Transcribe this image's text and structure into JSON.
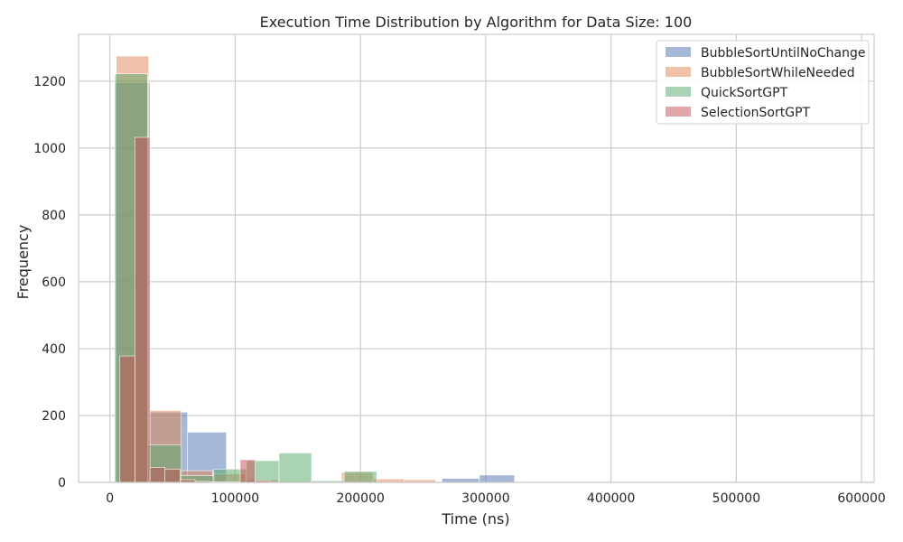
{
  "chart_data": {
    "type": "histogram",
    "title": "Execution Time Distribution by Algorithm for Data Size: 100",
    "xlabel": "Time (ns)",
    "ylabel": "Frequency",
    "xlim": [
      -25000,
      610000
    ],
    "ylim": [
      0,
      1340
    ],
    "xticks": [
      0,
      100000,
      200000,
      300000,
      400000,
      500000,
      600000
    ],
    "xtick_labels": [
      "0",
      "100000",
      "200000",
      "300000",
      "400000",
      "500000",
      "600000"
    ],
    "yticks": [
      0,
      200,
      400,
      600,
      800,
      1000,
      1200
    ],
    "ytick_labels": [
      "0",
      "200",
      "400",
      "600",
      "800",
      "1000",
      "1200"
    ],
    "grid": true,
    "legend_position": "top-right",
    "series": [
      {
        "name": "BubbleSortUntilNoChange",
        "color": "#4c72b0",
        "alpha": 0.5,
        "bins": [
          {
            "x0": 4000,
            "x1": 32000,
            "count": 1195
          },
          {
            "x0": 32000,
            "x1": 62000,
            "count": 210
          },
          {
            "x0": 62000,
            "x1": 93000,
            "count": 150
          },
          {
            "x0": 93000,
            "x1": 121000,
            "count": 5
          },
          {
            "x0": 121000,
            "x1": 150000,
            "count": 3
          },
          {
            "x0": 150000,
            "x1": 180000,
            "count": 2
          },
          {
            "x0": 180000,
            "x1": 210000,
            "count": 2
          },
          {
            "x0": 210000,
            "x1": 240000,
            "count": 1
          },
          {
            "x0": 240000,
            "x1": 265000,
            "count": 1
          },
          {
            "x0": 265000,
            "x1": 295000,
            "count": 12
          },
          {
            "x0": 295000,
            "x1": 323000,
            "count": 22
          },
          {
            "x0": 323000,
            "x1": 585000,
            "count": 1
          }
        ]
      },
      {
        "name": "BubbleSortWhileNeeded",
        "color": "#dd8452",
        "alpha": 0.5,
        "bins": [
          {
            "x0": 5000,
            "x1": 31000,
            "count": 1275
          },
          {
            "x0": 31000,
            "x1": 57000,
            "count": 215
          },
          {
            "x0": 57000,
            "x1": 82000,
            "count": 35
          },
          {
            "x0": 82000,
            "x1": 108000,
            "count": 25
          },
          {
            "x0": 108000,
            "x1": 134000,
            "count": 8
          },
          {
            "x0": 134000,
            "x1": 160000,
            "count": 3
          },
          {
            "x0": 160000,
            "x1": 185000,
            "count": 2
          },
          {
            "x0": 185000,
            "x1": 210000,
            "count": 30
          },
          {
            "x0": 210000,
            "x1": 235000,
            "count": 10
          },
          {
            "x0": 235000,
            "x1": 260000,
            "count": 8
          }
        ]
      },
      {
        "name": "QuickSortGPT",
        "color": "#55a868",
        "alpha": 0.5,
        "bins": [
          {
            "x0": 4000,
            "x1": 30000,
            "count": 1222
          },
          {
            "x0": 30000,
            "x1": 57000,
            "count": 112
          },
          {
            "x0": 57000,
            "x1": 83000,
            "count": 20
          },
          {
            "x0": 83000,
            "x1": 109000,
            "count": 40
          },
          {
            "x0": 109000,
            "x1": 135000,
            "count": 65
          },
          {
            "x0": 135000,
            "x1": 161000,
            "count": 88
          },
          {
            "x0": 161000,
            "x1": 187000,
            "count": 5
          },
          {
            "x0": 187000,
            "x1": 213000,
            "count": 33
          }
        ]
      },
      {
        "name": "SelectionSortGPT",
        "color": "#c44e52",
        "alpha": 0.5,
        "bins": [
          {
            "x0": 8000,
            "x1": 20000,
            "count": 378
          },
          {
            "x0": 20000,
            "x1": 32000,
            "count": 1032
          },
          {
            "x0": 32000,
            "x1": 44000,
            "count": 45
          },
          {
            "x0": 44000,
            "x1": 56000,
            "count": 40
          },
          {
            "x0": 56000,
            "x1": 68000,
            "count": 8
          },
          {
            "x0": 68000,
            "x1": 80000,
            "count": 3
          },
          {
            "x0": 80000,
            "x1": 92000,
            "count": 2
          },
          {
            "x0": 92000,
            "x1": 104000,
            "count": 2
          },
          {
            "x0": 104000,
            "x1": 116000,
            "count": 68
          },
          {
            "x0": 116000,
            "x1": 128000,
            "count": 5
          }
        ]
      }
    ]
  }
}
